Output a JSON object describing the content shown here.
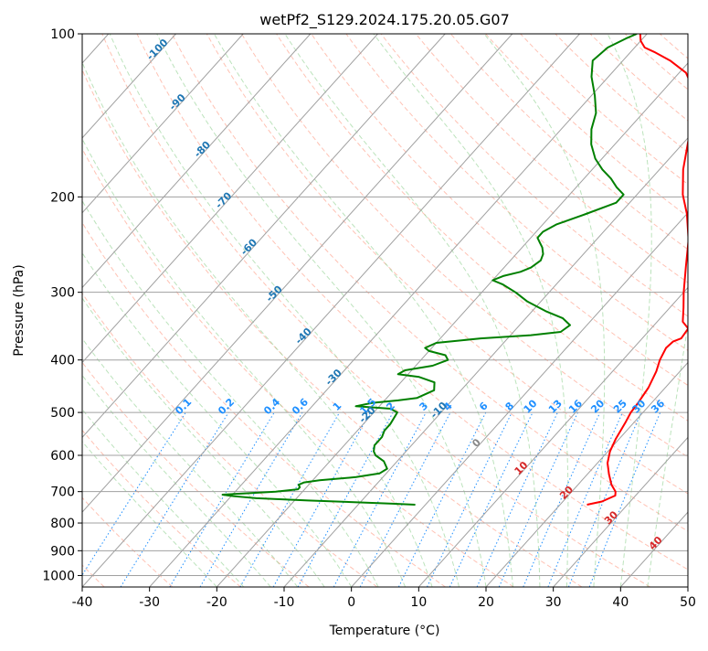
{
  "chart_data": {
    "type": "line",
    "diagram": "skew-T log-P",
    "title": "wetPf2_S129.2024.175.20.05.G07",
    "xlabel": "Temperature (°C)",
    "ylabel": "Pressure (hPa)",
    "xlim": [
      -40,
      50
    ],
    "ylim": [
      1050,
      100
    ],
    "y_scale": "log",
    "grid": true,
    "x_ticks": [
      -40,
      -30,
      -20,
      -10,
      0,
      10,
      20,
      30,
      40,
      50
    ],
    "y_ticks": [
      1000,
      900,
      800,
      700,
      600,
      500,
      400,
      300,
      200,
      100
    ],
    "series": [
      {
        "color": "#ff0000",
        "points": [
          [
            24.0,
            740
          ],
          [
            25.8,
            730
          ],
          [
            27.0,
            712
          ],
          [
            26.5,
            700
          ],
          [
            25.0,
            680
          ],
          [
            23.2,
            650
          ],
          [
            21.5,
            620
          ],
          [
            20.3,
            590
          ],
          [
            19.5,
            560
          ],
          [
            18.7,
            520
          ],
          [
            18.2,
            500
          ],
          [
            18.0,
            480
          ],
          [
            17.5,
            450
          ],
          [
            16.5,
            420
          ],
          [
            15.5,
            400
          ],
          [
            14.8,
            380
          ],
          [
            15.0,
            370
          ],
          [
            15.8,
            365
          ],
          [
            15.5,
            350
          ],
          [
            13.8,
            340
          ],
          [
            12.0,
            320
          ],
          [
            10.0,
            300
          ],
          [
            7.0,
            270
          ],
          [
            3.7,
            240
          ],
          [
            0.0,
            215
          ],
          [
            -3.2,
            198
          ],
          [
            -6.5,
            178
          ],
          [
            -9.5,
            158
          ],
          [
            -12.0,
            142
          ],
          [
            -15.2,
            128
          ],
          [
            -19.0,
            118
          ],
          [
            -23.0,
            112
          ],
          [
            -26.5,
            108
          ],
          [
            -28.5,
            106
          ],
          [
            -30.0,
            103
          ],
          [
            -31.0,
            100
          ]
        ]
      },
      {
        "color": "#008000",
        "points": [
          [
            -1.5,
            740
          ],
          [
            -5,
            737
          ],
          [
            -10,
            733
          ],
          [
            -18,
            727
          ],
          [
            -26,
            720
          ],
          [
            -30,
            713
          ],
          [
            -31.5,
            709
          ],
          [
            -28,
            705
          ],
          [
            -24,
            700
          ],
          [
            -21,
            693
          ],
          [
            -21,
            687
          ],
          [
            -21.5,
            680
          ],
          [
            -21,
            673
          ],
          [
            -19,
            667
          ],
          [
            -14,
            658
          ],
          [
            -11,
            648
          ],
          [
            -10.5,
            635
          ],
          [
            -12,
            615
          ],
          [
            -14,
            600
          ],
          [
            -14.8,
            590
          ],
          [
            -15.5,
            575
          ],
          [
            -15.5,
            555
          ],
          [
            -16,
            540
          ],
          [
            -16,
            525
          ],
          [
            -16.5,
            500
          ],
          [
            -18,
            492
          ],
          [
            -23.5,
            487
          ],
          [
            -21.5,
            480
          ],
          [
            -18,
            475
          ],
          [
            -15.5,
            470
          ],
          [
            -14,
            455
          ],
          [
            -15,
            440
          ],
          [
            -18,
            430
          ],
          [
            -21.5,
            425
          ],
          [
            -21,
            418
          ],
          [
            -17.5,
            410
          ],
          [
            -16,
            400
          ],
          [
            -17,
            392
          ],
          [
            -20,
            385
          ],
          [
            -21,
            380
          ],
          [
            -20,
            372
          ],
          [
            -14,
            365
          ],
          [
            -7,
            360
          ],
          [
            -3,
            355
          ],
          [
            -2.5,
            345
          ],
          [
            -4.5,
            335
          ],
          [
            -8,
            325
          ],
          [
            -12,
            312
          ],
          [
            -15,
            300
          ],
          [
            -18,
            290
          ],
          [
            -20,
            285
          ],
          [
            -19,
            280
          ],
          [
            -17,
            275
          ],
          [
            -16,
            270
          ],
          [
            -15.5,
            262
          ],
          [
            -16,
            255
          ],
          [
            -17,
            248
          ],
          [
            -18,
            243
          ],
          [
            -19,
            238
          ],
          [
            -19,
            232
          ],
          [
            -18,
            225
          ],
          [
            -15,
            215
          ],
          [
            -12,
            205
          ],
          [
            -12,
            198
          ],
          [
            -14,
            192
          ],
          [
            -16,
            185
          ],
          [
            -18.5,
            178
          ],
          [
            -21,
            170
          ],
          [
            -23.5,
            160
          ],
          [
            -25.5,
            150
          ],
          [
            -27,
            140
          ],
          [
            -29.5,
            130
          ],
          [
            -32.5,
            120
          ],
          [
            -34.5,
            112
          ],
          [
            -34,
            106
          ],
          [
            -32.5,
            102
          ],
          [
            -31.5,
            100
          ]
        ]
      }
    ],
    "isotherm_label": "0",
    "dry_adiabat_labels": [
      "-100",
      "-90",
      "-80",
      "-70",
      "-60",
      "-50",
      "-40",
      "-30",
      "-20",
      "-10",
      "0",
      "10",
      "20",
      "30",
      "40"
    ],
    "mixing_ratio_labels": [
      "0.1",
      "0.2",
      "0.4",
      "0.6",
      "1",
      "1.5",
      "2",
      "3",
      "4",
      "6",
      "8",
      "10",
      "13",
      "16",
      "20",
      "25",
      "30",
      "36"
    ],
    "mixing_ratio_values": [
      0.1,
      0.2,
      0.4,
      0.6,
      1,
      1.5,
      2,
      3,
      4,
      6,
      8,
      10,
      13,
      16,
      20,
      25,
      30,
      36
    ],
    "colors": {
      "temperature": "#ff0000",
      "dewpoint": "#008000",
      "isotherm": "#a0a0a0",
      "dry_adiabat": "#ff9a82",
      "moist_adiabat": "#8fd18f",
      "mixing_ratio": "#1e8fff",
      "dry_adiabat_label": "#1f77b4",
      "warm_label": "#d62728"
    }
  }
}
